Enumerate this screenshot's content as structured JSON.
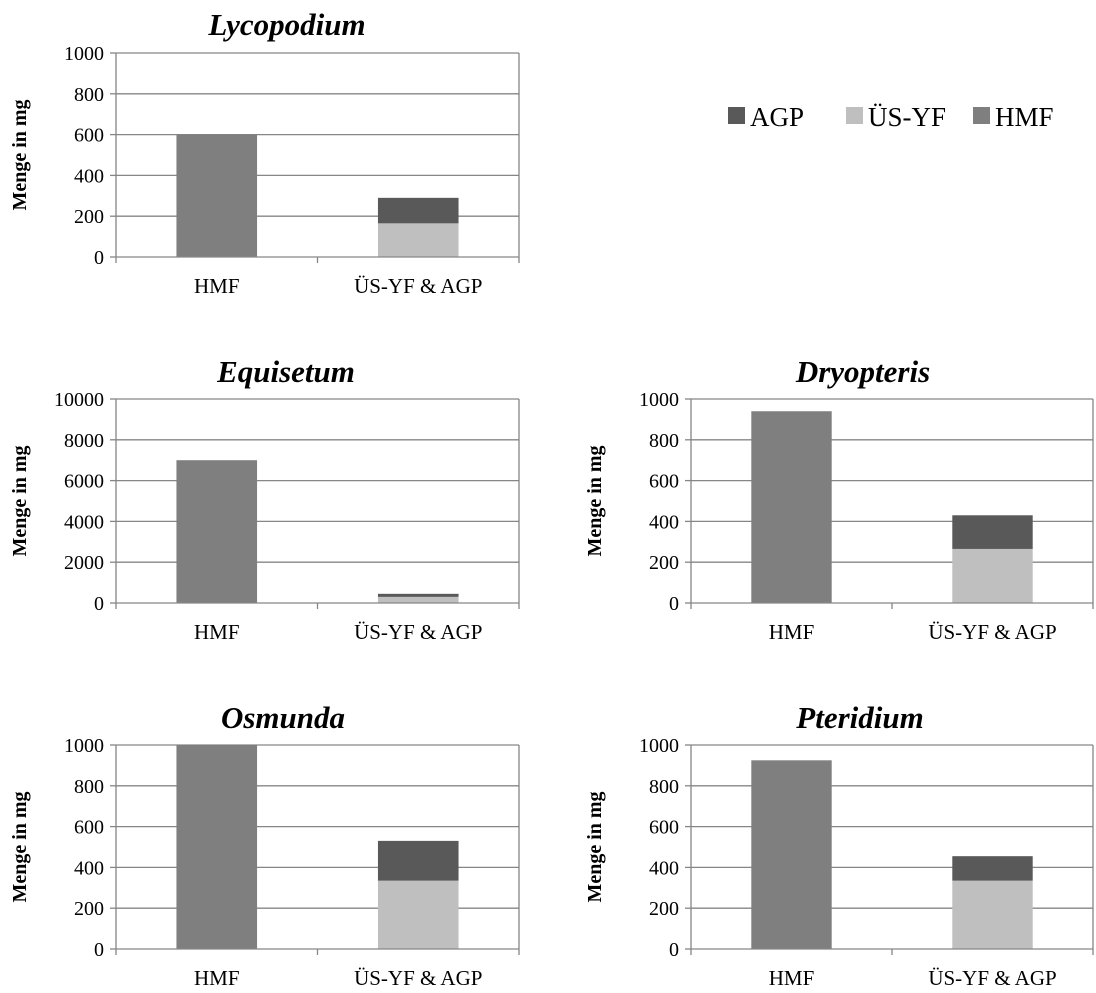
{
  "colors": {
    "AGP": "#595959",
    "US_YF": "#bfbfbf",
    "HMF": "#7f7f7f",
    "grid": "#868686",
    "axis": "#868686"
  },
  "legend": {
    "placement": "top-right",
    "items": [
      {
        "key": "AGP",
        "label": "AGP",
        "color": "#595959"
      },
      {
        "key": "US_YF",
        "label": "ÜS-YF",
        "color": "#bfbfbf"
      },
      {
        "key": "HMF",
        "label": "HMF",
        "color": "#7f7f7f"
      }
    ]
  },
  "chart_data": [
    {
      "type": "bar",
      "stacked": true,
      "title": "Lycopodium",
      "ylabel": "Menge in mg",
      "ylim": [
        0,
        1000
      ],
      "yticks": [
        0,
        200,
        400,
        600,
        800,
        1000
      ],
      "grid": true,
      "categories": [
        "HMF",
        "ÜS-YF & AGP"
      ],
      "series": [
        {
          "name": "HMF",
          "values": [
            600,
            0
          ]
        },
        {
          "name": "ÜS-YF",
          "values": [
            0,
            165
          ]
        },
        {
          "name": "AGP",
          "values": [
            0,
            125
          ]
        }
      ]
    },
    {
      "type": "bar",
      "stacked": true,
      "title": "Equisetum",
      "ylabel": "Menge in mg",
      "ylim": [
        0,
        10000
      ],
      "yticks": [
        0,
        2000,
        4000,
        6000,
        8000,
        10000
      ],
      "grid": true,
      "categories": [
        "HMF",
        "ÜS-YF & AGP"
      ],
      "series": [
        {
          "name": "HMF",
          "values": [
            7000,
            0
          ]
        },
        {
          "name": "ÜS-YF",
          "values": [
            0,
            300
          ]
        },
        {
          "name": "AGP",
          "values": [
            0,
            150
          ]
        }
      ]
    },
    {
      "type": "bar",
      "stacked": true,
      "title": "Dryopteris",
      "ylabel": "Menge in mg",
      "ylim": [
        0,
        1000
      ],
      "yticks": [
        0,
        200,
        400,
        600,
        800,
        1000
      ],
      "grid": true,
      "categories": [
        "HMF",
        "ÜS-YF & AGP"
      ],
      "series": [
        {
          "name": "HMF",
          "values": [
            940,
            0
          ]
        },
        {
          "name": "ÜS-YF",
          "values": [
            0,
            265
          ]
        },
        {
          "name": "AGP",
          "values": [
            0,
            165
          ]
        }
      ]
    },
    {
      "type": "bar",
      "stacked": true,
      "title": "Osmunda",
      "ylabel": "Menge in mg",
      "ylim": [
        0,
        1000
      ],
      "yticks": [
        0,
        200,
        400,
        600,
        800,
        1000
      ],
      "grid": true,
      "categories": [
        "HMF",
        "ÜS-YF & AGP"
      ],
      "series": [
        {
          "name": "HMF",
          "values": [
            1000,
            0
          ]
        },
        {
          "name": "ÜS-YF",
          "values": [
            0,
            335
          ]
        },
        {
          "name": "AGP",
          "values": [
            0,
            195
          ]
        }
      ]
    },
    {
      "type": "bar",
      "stacked": true,
      "title": "Pteridium",
      "ylabel": "Menge in mg",
      "ylim": [
        0,
        1000
      ],
      "yticks": [
        0,
        200,
        400,
        600,
        800,
        1000
      ],
      "grid": true,
      "categories": [
        "HMF",
        "ÜS-YF & AGP"
      ],
      "series": [
        {
          "name": "HMF",
          "values": [
            925,
            0
          ]
        },
        {
          "name": "ÜS-YF",
          "values": [
            0,
            335
          ]
        },
        {
          "name": "AGP",
          "values": [
            0,
            120
          ]
        }
      ]
    }
  ]
}
